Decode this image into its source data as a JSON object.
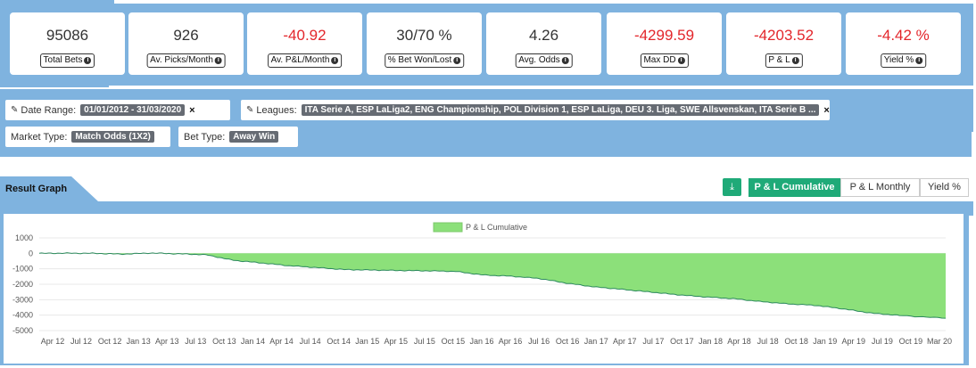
{
  "stats": [
    {
      "value": "95086",
      "label": "Total Bets",
      "negative": false
    },
    {
      "value": "926",
      "label": "Av. Picks/Month",
      "negative": false
    },
    {
      "value": "-40.92",
      "label": "Av. P&L/Month",
      "negative": true
    },
    {
      "value": "30/70 %",
      "label": "% Bet Won/Lost",
      "negative": false
    },
    {
      "value": "4.26",
      "label": "Avg. Odds",
      "negative": false
    },
    {
      "value": "-4299.59",
      "label": "Max DD",
      "negative": true
    },
    {
      "value": "-4203.52",
      "label": "P & L",
      "negative": true
    },
    {
      "value": "-4.42 %",
      "label": "Yield %",
      "negative": true
    }
  ],
  "filters": {
    "date_range_label": "Date Range:",
    "date_range_value": "01/01/2012 - 31/03/2020",
    "leagues_label": "Leagues:",
    "leagues_value": "ITA Serie A, ESP LaLiga2, ENG Championship, POL Division 1, ESP LaLiga, DEU 3. Liga, SWE Allsvenskan, ITA Serie B ...",
    "market_type_label": "Market Type:",
    "market_type_value": "Match Odds (1X2)",
    "bet_type_label": "Bet Type:",
    "bet_type_value": "Away Win",
    "remove_glyph": "×"
  },
  "result": {
    "tab_label": "Result Graph",
    "download_glyph": "⤓",
    "buttons": [
      "P & L Cumulative",
      "P & L Monthly",
      "Yield %"
    ],
    "active_button": 0
  },
  "colors": {
    "accent": "#1faa78",
    "band": "#7fb3df",
    "negative": "#e3262b",
    "area": "#8ce07a"
  },
  "chart_data": {
    "type": "area",
    "legend": "P & L Cumulative",
    "x_ticks": [
      "Apr 12",
      "Jul 12",
      "Oct 12",
      "Jan 13",
      "Apr 13",
      "Jul 13",
      "Oct 13",
      "Jan 14",
      "Apr 14",
      "Jul 14",
      "Oct 14",
      "Jan 15",
      "Apr 15",
      "Jul 15",
      "Oct 15",
      "Jan 16",
      "Apr 16",
      "Jul 16",
      "Oct 16",
      "Jan 17",
      "Apr 17",
      "Jul 17",
      "Oct 17",
      "Jan 18",
      "Apr 18",
      "Jul 18",
      "Oct 18",
      "Jan 19",
      "Apr 19",
      "Jul 19",
      "Oct 19",
      "Mar 20"
    ],
    "y_ticks": [
      1000,
      0,
      -1000,
      -2000,
      -3000,
      -4000,
      -5000
    ],
    "ylim": [
      -5000,
      1000
    ],
    "x": [
      "2012-01",
      "2012-04",
      "2012-07",
      "2012-10",
      "2013-01",
      "2013-04",
      "2013-07",
      "2013-10",
      "2014-01",
      "2014-04",
      "2014-07",
      "2014-10",
      "2015-01",
      "2015-04",
      "2015-07",
      "2015-10",
      "2016-01",
      "2016-04",
      "2016-07",
      "2016-10",
      "2017-01",
      "2017-04",
      "2017-07",
      "2017-10",
      "2018-01",
      "2018-04",
      "2018-07",
      "2018-10",
      "2019-01",
      "2019-04",
      "2019-07",
      "2019-10",
      "2020-03"
    ],
    "values": [
      0,
      10,
      0,
      -50,
      20,
      -30,
      -90,
      -450,
      -620,
      -800,
      -920,
      -1050,
      -1080,
      -1110,
      -1130,
      -1170,
      -1400,
      -1480,
      -1620,
      -1930,
      -2170,
      -2330,
      -2500,
      -2680,
      -2820,
      -2930,
      -3120,
      -3270,
      -3370,
      -3600,
      -3870,
      -4020,
      -4200
    ]
  }
}
